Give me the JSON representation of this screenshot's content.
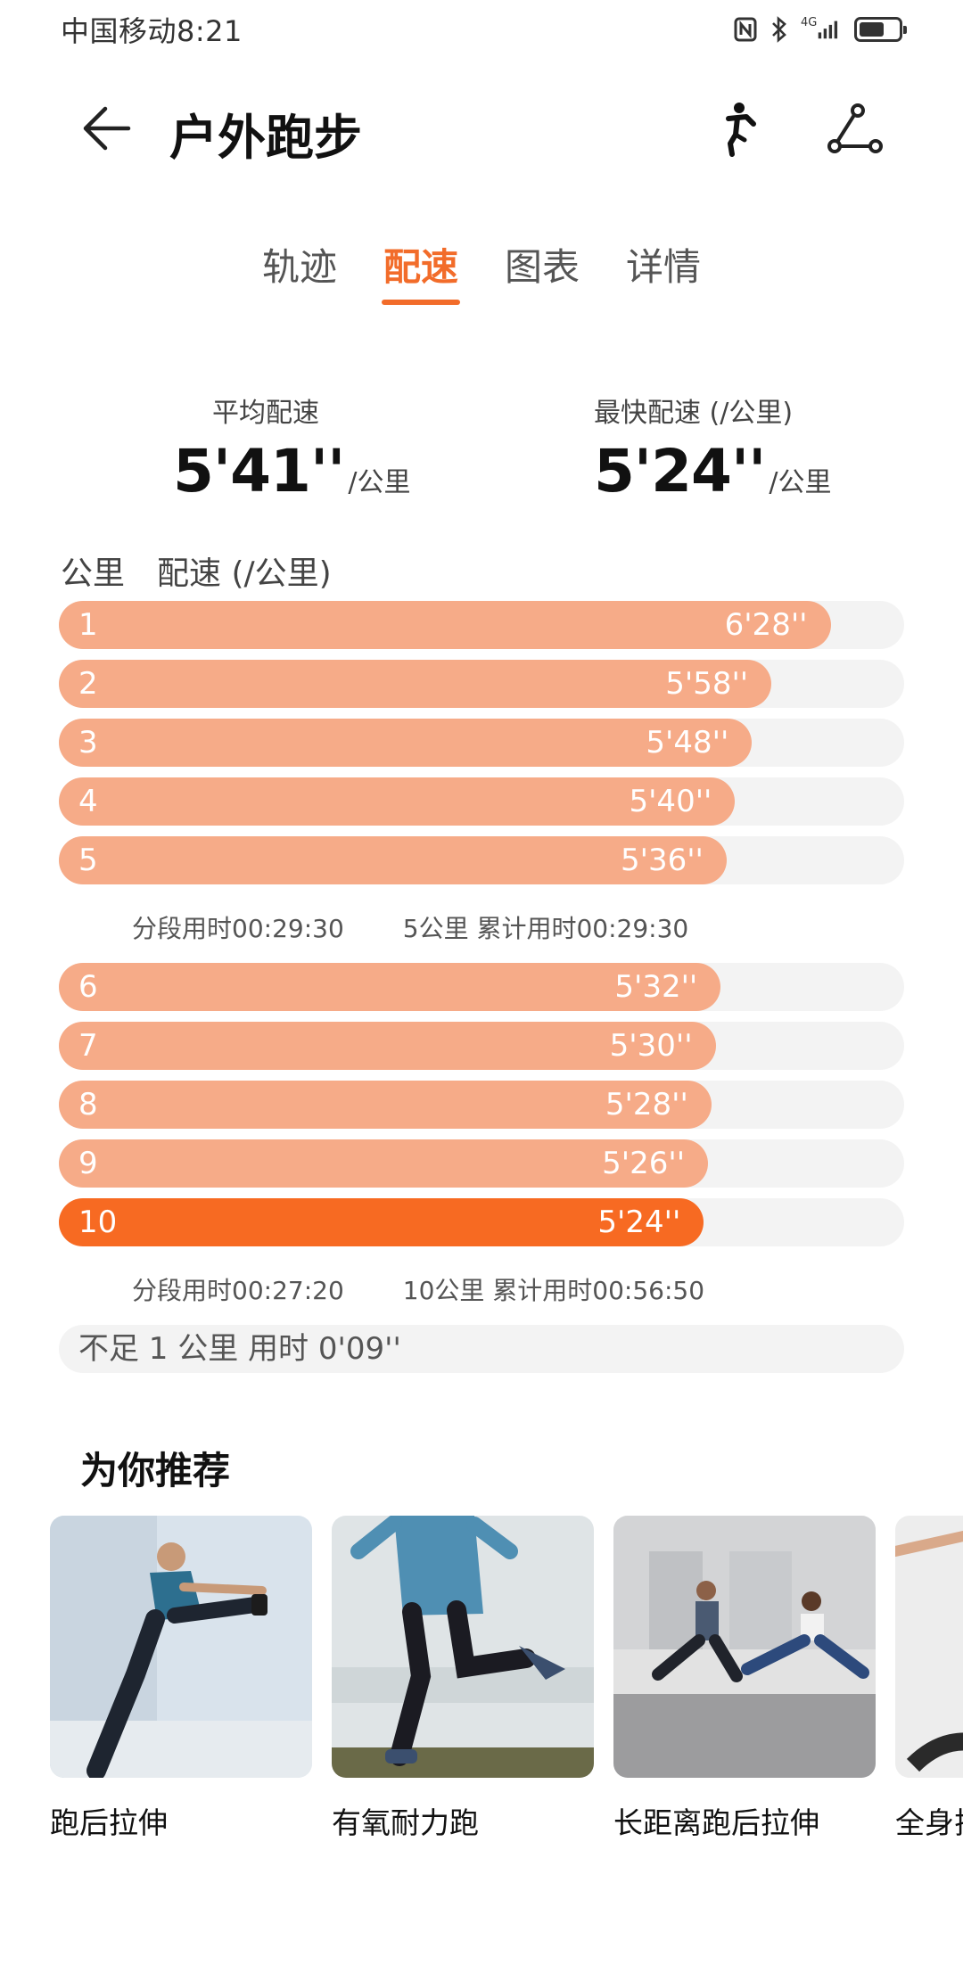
{
  "status_bar": {
    "carrier_time": "中国移动8:21",
    "network": "4G",
    "icons": [
      "nfc-icon",
      "bluetooth-icon",
      "signal-icon",
      "battery-icon"
    ],
    "battery_level": 0.65
  },
  "header": {
    "title": "户外跑步",
    "icons": [
      "back-arrow-icon",
      "runner-icon",
      "share-route-icon"
    ]
  },
  "tabs": [
    {
      "label": "轨迹",
      "active": false
    },
    {
      "label": "配速",
      "active": true
    },
    {
      "label": "图表",
      "active": false
    },
    {
      "label": "详情",
      "active": false
    }
  ],
  "summary": {
    "avg_label": "平均配速",
    "avg_value": "5'41''",
    "avg_unit": "/公里",
    "fast_label": "最快配速 (/公里)",
    "fast_value": "5'24''",
    "fast_unit": "/公里"
  },
  "table_header": {
    "km": "公里",
    "pace": "配速 (/公里)"
  },
  "splits": [
    {
      "km": "1",
      "pace": "6'28''",
      "fill": 0.913,
      "highlight": false
    },
    {
      "km": "2",
      "pace": "5'58''",
      "fill": 0.843,
      "highlight": false
    },
    {
      "km": "3",
      "pace": "5'48''",
      "fill": 0.82,
      "highlight": false
    },
    {
      "km": "4",
      "pace": "5'40''",
      "fill": 0.8,
      "highlight": false
    },
    {
      "km": "5",
      "pace": "5'36''",
      "fill": 0.79,
      "highlight": false
    },
    {
      "km": "6",
      "pace": "5'32''",
      "fill": 0.783,
      "highlight": false
    },
    {
      "km": "7",
      "pace": "5'30''",
      "fill": 0.777,
      "highlight": false
    },
    {
      "km": "8",
      "pace": "5'28''",
      "fill": 0.772,
      "highlight": false
    },
    {
      "km": "9",
      "pace": "5'26''",
      "fill": 0.768,
      "highlight": false
    },
    {
      "km": "10",
      "pace": "5'24''",
      "fill": 0.763,
      "highlight": true
    }
  ],
  "notes": [
    {
      "segment": "分段用时00:29:30",
      "cumulative": "5公里 累计用时00:29:30"
    },
    {
      "segment": "分段用时00:27:20",
      "cumulative": "10公里 累计用时00:56:50"
    }
  ],
  "remainder": "不足 1 公里 用时 0'09''",
  "recommend": {
    "title": "为你推荐",
    "items": [
      {
        "label": "跑后拉伸"
      },
      {
        "label": "有氧耐力跑"
      },
      {
        "label": "长距离跑后拉伸"
      },
      {
        "label": "全身拉"
      }
    ]
  },
  "colors": {
    "accent": "#f26c2a",
    "bar": "#f6ab88",
    "bar_highlight": "#f76a22",
    "track": "#f3f3f3"
  }
}
